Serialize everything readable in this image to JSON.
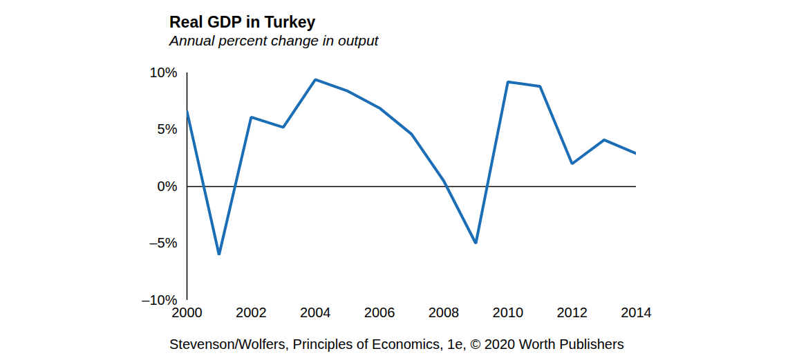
{
  "chart_data": {
    "type": "line",
    "title": "Real GDP in Turkey",
    "subtitle": "Annual percent change in output",
    "caption": "Stevenson/Wolfers, Principles of Economics, 1e, © 2020 Worth Publishers",
    "x": [
      2000,
      2001,
      2002,
      2003,
      2004,
      2005,
      2006,
      2007,
      2008,
      2009,
      2010,
      2011,
      2012,
      2013,
      2014
    ],
    "values": [
      6.6,
      -6.0,
      6.1,
      5.2,
      9.4,
      8.4,
      6.9,
      4.6,
      0.5,
      -5.0,
      9.2,
      8.8,
      2.0,
      4.1,
      2.9
    ],
    "color": "#1b6db5",
    "xlim": [
      2000,
      2014
    ],
    "xticks": [
      2000,
      2002,
      2004,
      2006,
      2008,
      2010,
      2012,
      2014
    ],
    "ylim": [
      -10,
      10
    ],
    "yticks": [
      {
        "value": -10,
        "label": "–10%"
      },
      {
        "value": -5,
        "label": "–5%"
      },
      {
        "value": 0,
        "label": "0%"
      },
      {
        "value": 5,
        "label": "5%"
      },
      {
        "value": 10,
        "label": "10%"
      }
    ],
    "grid": false
  }
}
